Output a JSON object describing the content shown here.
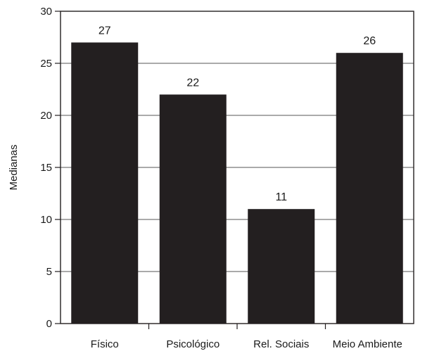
{
  "chart_data": {
    "type": "bar",
    "categories": [
      "Físico",
      "Psicológico",
      "Rel. Sociais",
      "Meio Ambiente"
    ],
    "values": [
      27,
      22,
      11,
      26
    ],
    "data_labels": [
      "27",
      "22",
      "11",
      "26"
    ],
    "title": "",
    "xlabel": "",
    "ylabel": "Medianas",
    "ylim": [
      0,
      30
    ],
    "yticks": [
      0,
      5,
      10,
      15,
      20,
      25,
      30
    ],
    "grid": "horizontal",
    "legend": "none",
    "bar_color": "#231f20",
    "grid_color": "#555555"
  }
}
